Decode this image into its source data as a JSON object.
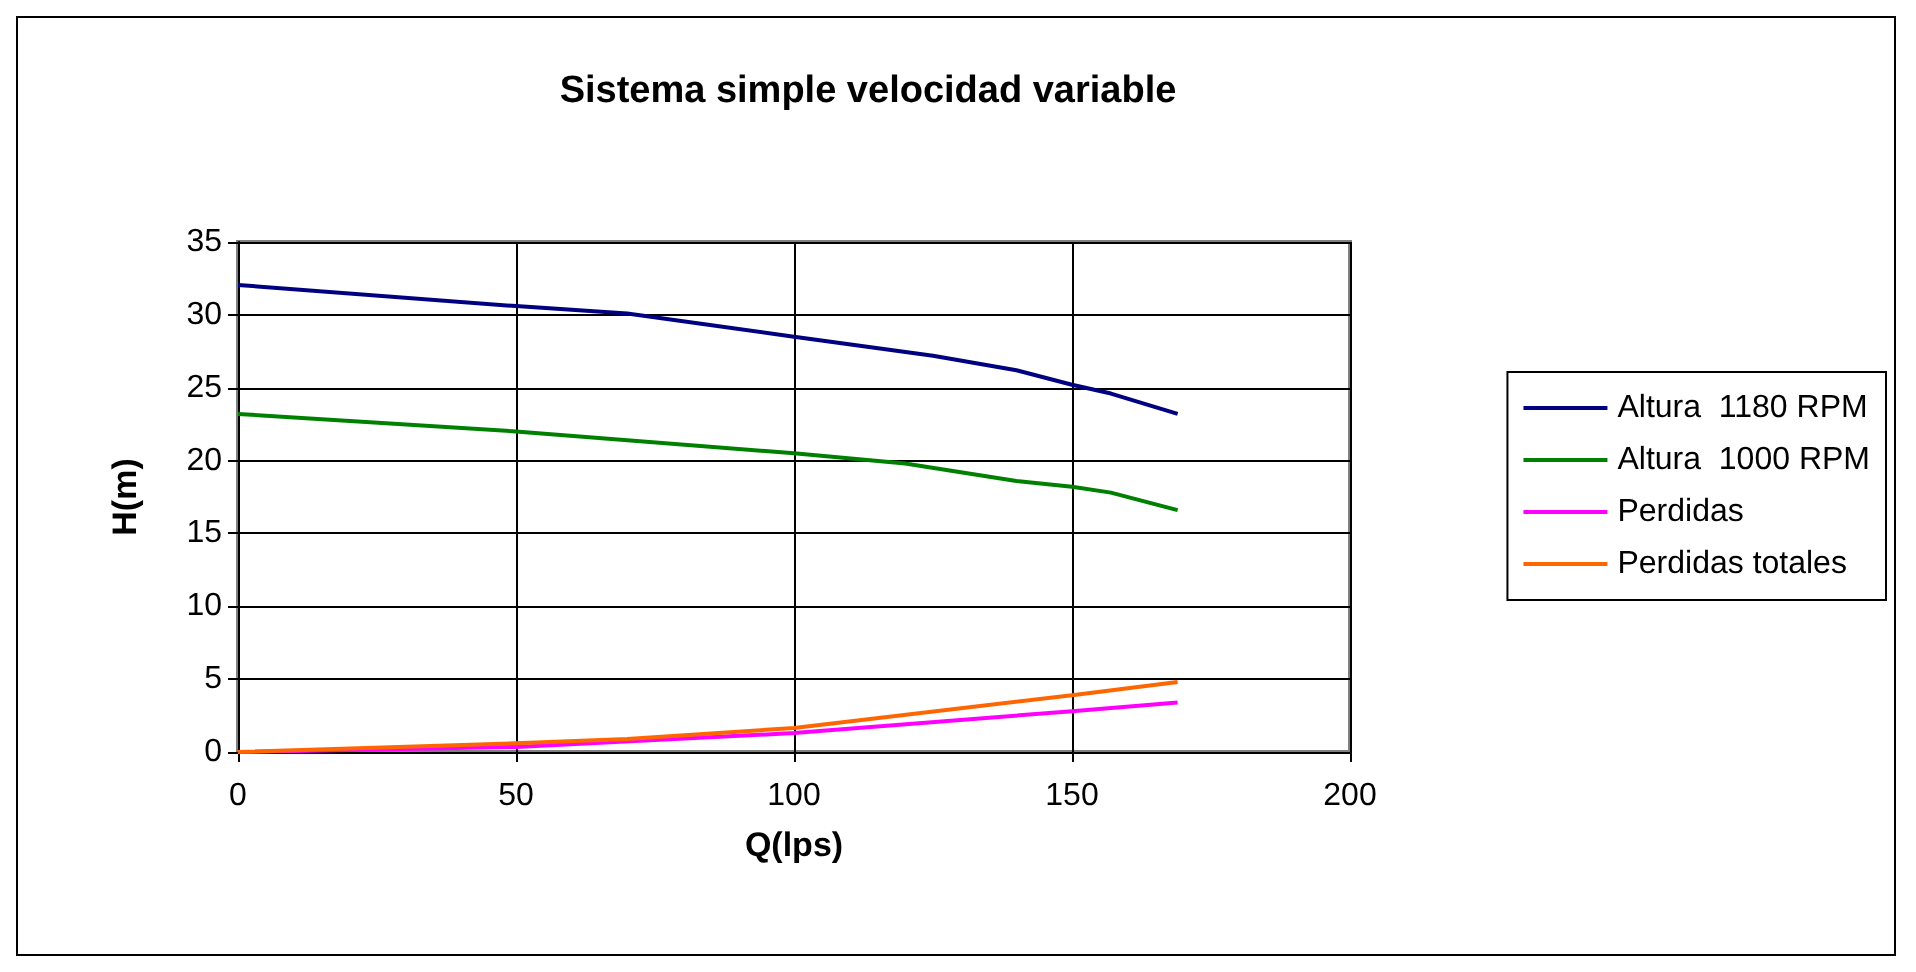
{
  "chart_data": {
    "type": "line",
    "title": "Sistema simple velocidad variable",
    "xlabel": "Q(lps)",
    "ylabel": "H(m)",
    "xlim": [
      0,
      200
    ],
    "xticks": [
      0,
      50,
      100,
      150,
      200
    ],
    "ylim": [
      0,
      35
    ],
    "yticks": [
      0,
      5,
      10,
      15,
      20,
      25,
      30,
      35
    ],
    "grid": true,
    "legend": "right",
    "marker": "none",
    "series": [
      {
        "name": "Altura  1180 RPM",
        "color": "#000080",
        "x": [
          0,
          50,
          70,
          100,
          125,
          140,
          150,
          157,
          169
        ],
        "values": [
          32.05,
          30.6,
          30.1,
          28.5,
          27.2,
          26.2,
          25.2,
          24.6,
          23.2
        ]
      },
      {
        "name": "Altura  1000 RPM",
        "color": "#008000",
        "x": [
          0,
          50,
          100,
          120,
          140,
          150,
          157,
          169
        ],
        "values": [
          23.2,
          22.0,
          20.5,
          19.8,
          18.6,
          18.2,
          17.8,
          16.6
        ]
      },
      {
        "name": "Perdidas",
        "color": "#ff00ff",
        "x": [
          0,
          50,
          100,
          150,
          169
        ],
        "values": [
          0,
          0.35,
          1.3,
          2.8,
          3.4
        ]
      },
      {
        "name": "Perdidas totales",
        "color": "#ff6600",
        "x": [
          0,
          50,
          70,
          100,
          150,
          169
        ],
        "values": [
          0,
          0.6,
          0.9,
          1.65,
          3.9,
          4.8
        ]
      }
    ]
  }
}
